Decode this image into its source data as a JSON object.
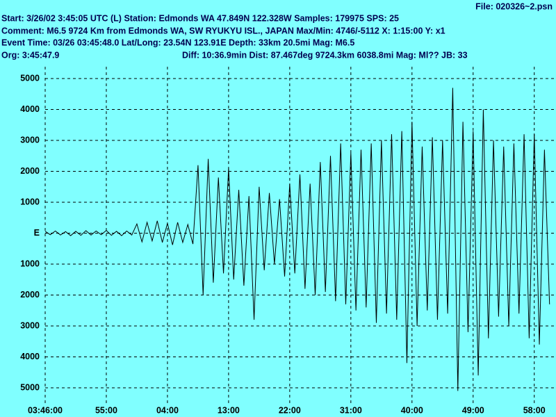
{
  "chart_data": {
    "type": "line",
    "file": "File: 020326~2.psn",
    "start_line": "Start: 3/26/02  3:45:05 UTC (L) Station: Edmonds WA 47.849N 122.328W Samples: 179975  SPS: 25",
    "comment_line": "Comment: M6.5 9724 Km from Edmonds WA, SW RYUKYU ISL., JAPAN  Max/Min: 4746/-5112 X: 1:15:00 Y: x1",
    "event_line": "Event Time: 03/26 03:45:48.0 Lat/Long: 23.54N 123.91E Depth: 33km 20.5mi Mag: M6.5",
    "org_line": "Org: 3:45:47.9",
    "diff_line": "Diff: 10:36.9min Dist: 87.467deg 9724.3km 6038.8mi  Mag: Ml?? JB: 33",
    "background": "#80ffff",
    "grid": true,
    "xlim": [
      0,
      75.2
    ],
    "ylim": [
      -5000,
      5000
    ],
    "xticks": [
      {
        "value": 0,
        "label": "03:46:00"
      },
      {
        "value": 9,
        "label": "55:00"
      },
      {
        "value": 18,
        "label": "04:00"
      },
      {
        "value": 27,
        "label": "13:00"
      },
      {
        "value": 36,
        "label": "22:00"
      },
      {
        "value": 45,
        "label": "31:00"
      },
      {
        "value": 54,
        "label": "40:00"
      },
      {
        "value": 63,
        "label": "49:00"
      },
      {
        "value": 72,
        "label": "58:00"
      }
    ],
    "yticks": [
      5000,
      4000,
      3000,
      2000,
      1000,
      {
        "value": 0,
        "label": "E"
      },
      {
        "value": -1000,
        "label": "1000"
      },
      {
        "value": -2000,
        "label": "2000"
      },
      {
        "value": -3000,
        "label": "3000"
      },
      {
        "value": -4000,
        "label": "4000"
      },
      {
        "value": -5000,
        "label": "5000"
      }
    ],
    "series": [
      {
        "color": "#000000",
        "x": [
          0,
          0.75,
          1.5,
          2.25,
          3,
          3.75,
          4.5,
          5.25,
          6,
          6.75,
          7.5,
          8.25,
          9,
          9.75,
          10.5,
          11.25,
          12,
          12.75,
          13.5,
          14.25,
          15,
          15.75,
          16.5,
          17.25,
          18,
          18.75,
          19.5,
          20.25,
          21,
          21.75,
          22.5,
          23.25,
          24,
          24.75,
          25.5,
          26.25,
          27,
          27.75,
          28.5,
          29.25,
          30,
          30.75,
          31.5,
          32.25,
          33,
          33.75,
          34.5,
          35.25,
          36,
          36.75,
          37.5,
          38.25,
          39,
          39.75,
          40.5,
          41.25,
          42,
          42.75,
          43.5,
          44.25,
          45,
          45.75,
          46.5,
          47.25,
          48,
          48.75,
          49.5,
          50.25,
          51,
          51.75,
          52.5,
          53.25,
          54,
          54.75,
          55.5,
          56.25,
          57,
          57.75,
          58.5,
          59.25,
          60,
          60.75,
          61.5,
          62.25,
          63,
          63.75,
          64.5,
          65.25,
          66,
          66.75,
          67.5,
          68.25,
          69,
          69.75,
          70.5,
          71.25,
          72,
          72.75,
          73.5,
          74.25
        ],
        "values": [
          60,
          -50,
          70,
          -60,
          50,
          -80,
          60,
          -70,
          80,
          -60,
          70,
          -50,
          90,
          -70,
          60,
          -80,
          70,
          -60,
          300,
          -280,
          350,
          -250,
          400,
          -300,
          320,
          -380,
          350,
          -300,
          280,
          -350,
          2200,
          -2000,
          2400,
          -1600,
          1800,
          -1300,
          2100,
          -1500,
          1400,
          -1700,
          1200,
          -2800,
          1500,
          -1200,
          1300,
          -1000,
          1100,
          -1400,
          1600,
          -1300,
          1900,
          -1800,
          1600,
          -2000,
          2300,
          -1900,
          2500,
          -2200,
          2900,
          -2300,
          2600,
          -2500,
          2700,
          -2400,
          2900,
          -2900,
          3000,
          -2600,
          3200,
          -2800,
          3300,
          -4200,
          3600,
          -3000,
          2800,
          -2500,
          3100,
          -2800,
          3000,
          -2600,
          4700,
          -5100,
          3600,
          -3200,
          3300,
          -4600,
          4000,
          -3400,
          3000,
          -2700,
          2800,
          -3000,
          2900,
          -2600,
          3200,
          -3400,
          3200,
          -3600,
          2700,
          -2300
        ]
      }
    ]
  }
}
